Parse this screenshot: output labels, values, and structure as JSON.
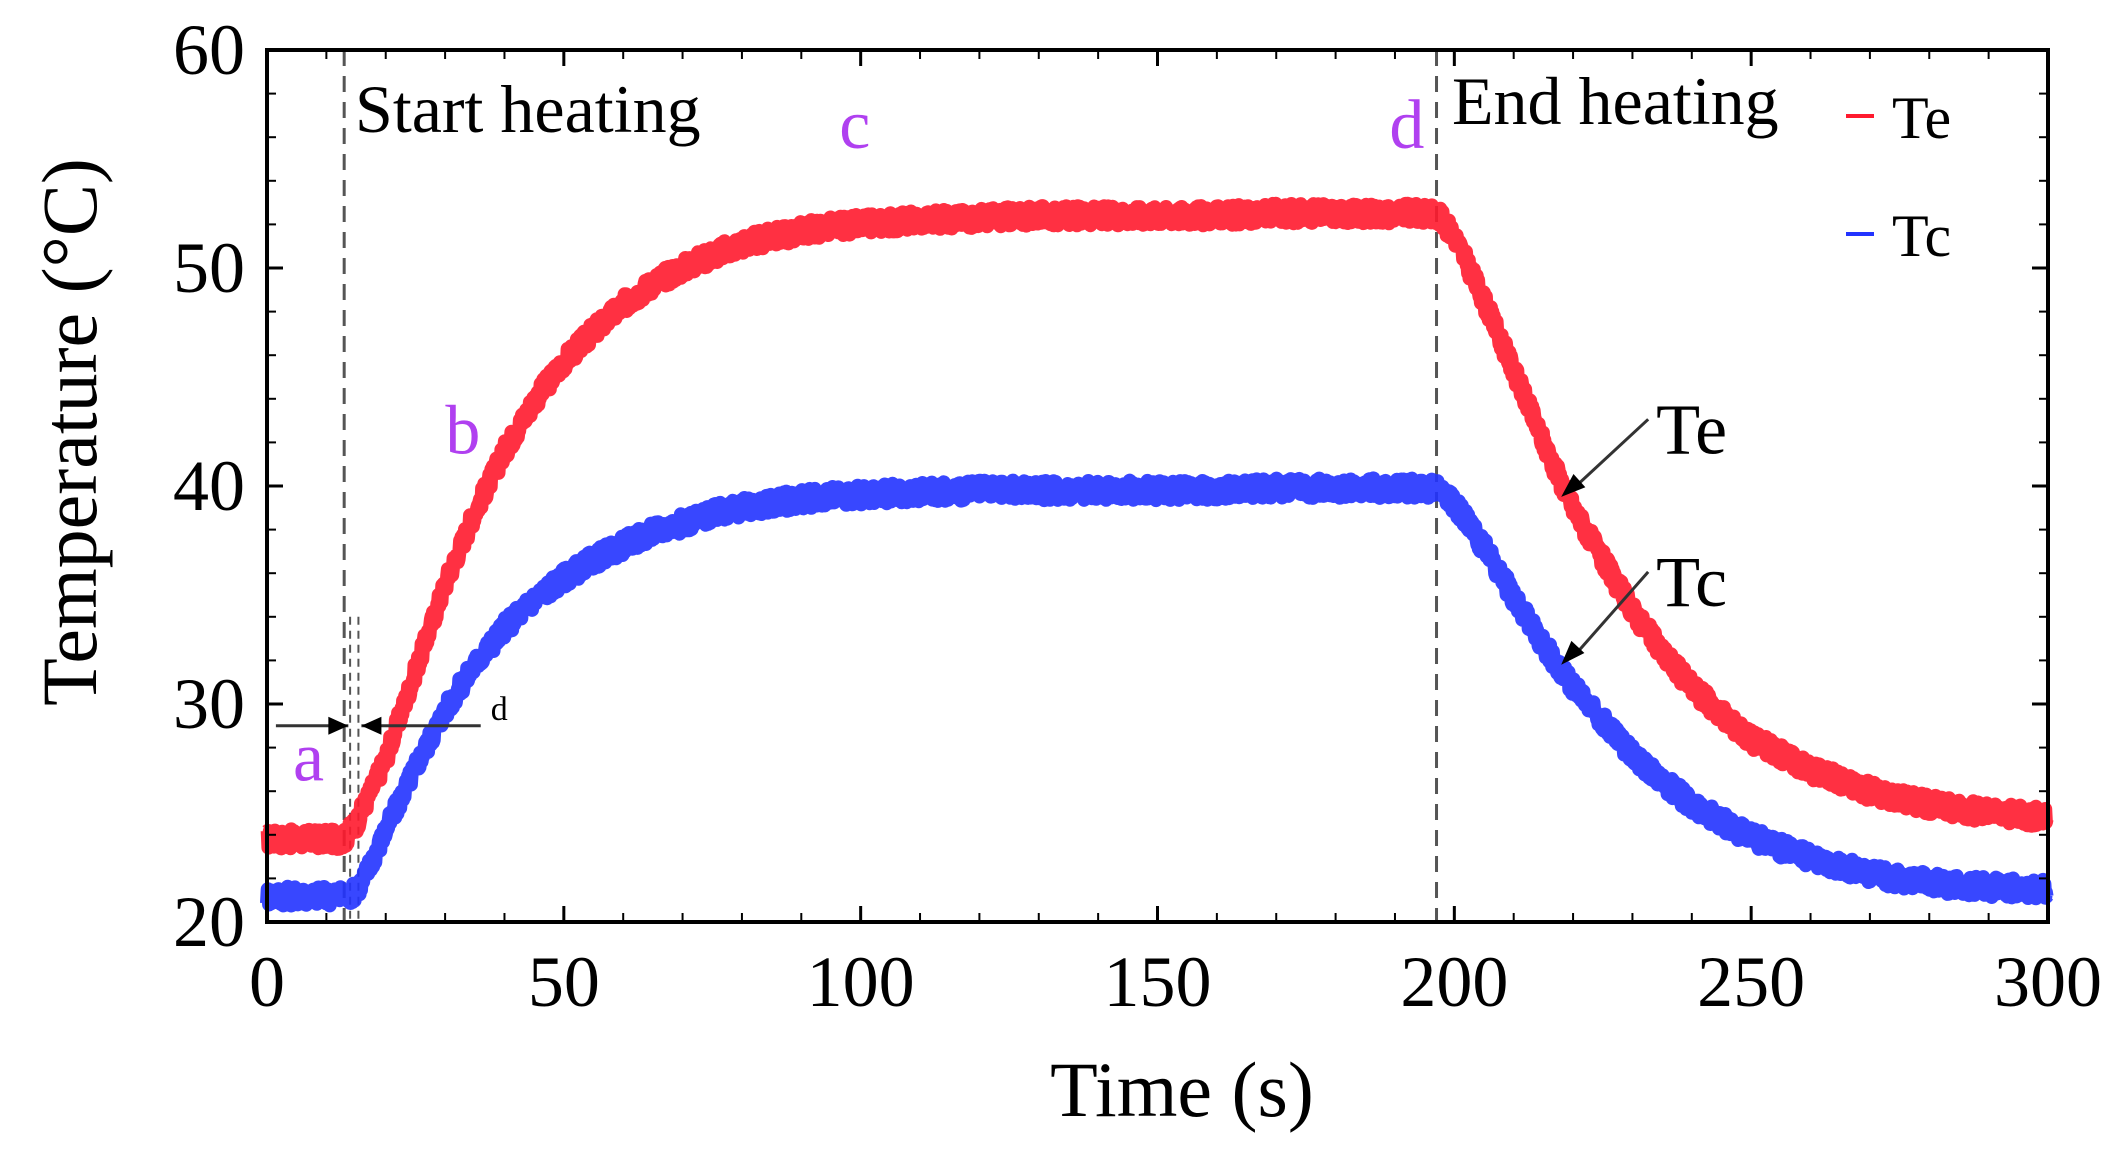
{
  "chart_data": {
    "type": "line",
    "title": "",
    "xlabel": "Time (s)",
    "ylabel": "Temperature (°C)",
    "xlim": [
      0,
      300
    ],
    "ylim": [
      20,
      60
    ],
    "xticks": [
      0,
      50,
      100,
      150,
      200,
      250,
      300
    ],
    "yticks": [
      20,
      30,
      40,
      50,
      60
    ],
    "xtick_labels": [
      "0",
      "50",
      "100",
      "150",
      "200",
      "250",
      "300"
    ],
    "ytick_labels": [
      "20",
      "30",
      "40",
      "50",
      "60"
    ],
    "grid": false,
    "legend_position": "top-right",
    "colors": {
      "Te": "#ff1a2e",
      "Tc": "#2233ff",
      "point_label": "#b040f0",
      "axis": "#000000",
      "dashed": "#555555"
    },
    "series": [
      {
        "name": "Te",
        "x": [
          0,
          5,
          10,
          13,
          15,
          20,
          25,
          30,
          35,
          40,
          45,
          50,
          55,
          60,
          65,
          70,
          75,
          80,
          85,
          90,
          95,
          100,
          110,
          120,
          130,
          140,
          150,
          160,
          170,
          180,
          190,
          197,
          200,
          205,
          210,
          215,
          220,
          225,
          230,
          235,
          240,
          245,
          250,
          260,
          270,
          280,
          290,
          300
        ],
        "values": [
          23.8,
          23.8,
          23.8,
          23.8,
          24.5,
          27.5,
          31.5,
          35.5,
          38.8,
          41.6,
          43.9,
          45.7,
          47.1,
          48.3,
          49.3,
          50.0,
          50.6,
          51.1,
          51.4,
          51.7,
          51.9,
          52.0,
          52.2,
          52.3,
          52.4,
          52.4,
          52.4,
          52.4,
          52.5,
          52.5,
          52.5,
          52.5,
          51.5,
          48.5,
          45.3,
          42.0,
          39.0,
          36.6,
          34.3,
          32.4,
          30.8,
          29.5,
          28.4,
          27.0,
          26.0,
          25.4,
          25.0,
          24.8
        ]
      },
      {
        "name": "Tc",
        "x": [
          0,
          5,
          10,
          14,
          16,
          20,
          25,
          30,
          35,
          40,
          45,
          50,
          55,
          60,
          65,
          70,
          75,
          80,
          85,
          90,
          95,
          100,
          110,
          120,
          130,
          140,
          150,
          160,
          170,
          180,
          190,
          197,
          200,
          205,
          210,
          215,
          220,
          225,
          230,
          235,
          240,
          245,
          250,
          260,
          270,
          280,
          290,
          300
        ],
        "values": [
          21.2,
          21.2,
          21.2,
          21.2,
          21.8,
          24.2,
          27.1,
          29.7,
          31.8,
          33.5,
          34.8,
          35.8,
          36.6,
          37.3,
          37.9,
          38.3,
          38.7,
          39.0,
          39.2,
          39.4,
          39.5,
          39.6,
          39.7,
          39.8,
          39.8,
          39.8,
          39.8,
          39.8,
          39.9,
          39.9,
          39.9,
          39.9,
          39.2,
          37.2,
          34.9,
          32.7,
          30.8,
          29.2,
          27.7,
          26.5,
          25.4,
          24.6,
          23.9,
          22.9,
          22.2,
          21.8,
          21.6,
          21.5
        ]
      }
    ],
    "annotations": {
      "start_heating": {
        "text": "Start heating",
        "x": 13
      },
      "end_heating": {
        "text": "End heating",
        "x": 197
      },
      "points": [
        {
          "label": "a",
          "x": 7,
          "y": 26.5
        },
        {
          "label": "b",
          "x": 33,
          "y": 41.5
        },
        {
          "label": "c",
          "x": 99,
          "y": 55.5
        },
        {
          "label": "d",
          "x": 192,
          "y": 55.5
        }
      ],
      "delay_marker": {
        "label": "d",
        "y": 29,
        "x_start": 13,
        "x_end": 16
      },
      "curve_labels": [
        {
          "text": "Te",
          "x": 234,
          "y": 41.5
        },
        {
          "text": "Tc",
          "x": 234,
          "y": 34.5
        }
      ]
    },
    "legend": [
      {
        "name": "Te",
        "color": "#ff1a2e"
      },
      {
        "name": "Tc",
        "color": "#2233ff"
      }
    ]
  }
}
